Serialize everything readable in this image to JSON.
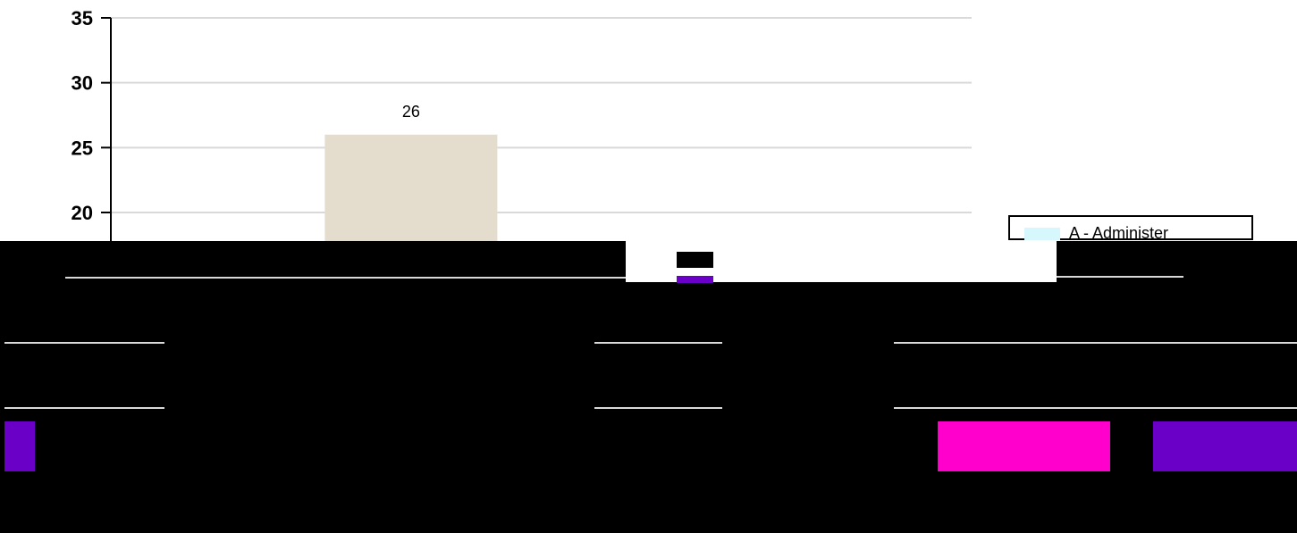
{
  "chart_data": {
    "type": "bar",
    "categories": [
      "",
      "",
      "",
      "",
      ""
    ],
    "series": [
      {
        "name": "A - Administer",
        "values": [
          null,
          26,
          null,
          null,
          null
        ],
        "color": "#e4dccc"
      }
    ],
    "data_labels": [
      "",
      "26",
      "",
      "",
      ""
    ],
    "ylim": [
      0,
      35
    ],
    "yticks": [
      20,
      25,
      30,
      35
    ],
    "ytick_labels": [
      "20",
      "25",
      "30",
      "35"
    ],
    "grid": true,
    "legend_position": "right"
  },
  "legend": {
    "entries": [
      {
        "label": "A - Administer",
        "color": "#d6f7fb"
      }
    ]
  },
  "colors": {
    "grid": "#d9d9d9",
    "axis": "#000000",
    "obscure": "#000000",
    "purple": "#6a00c8",
    "magenta": "#ff00cc"
  }
}
